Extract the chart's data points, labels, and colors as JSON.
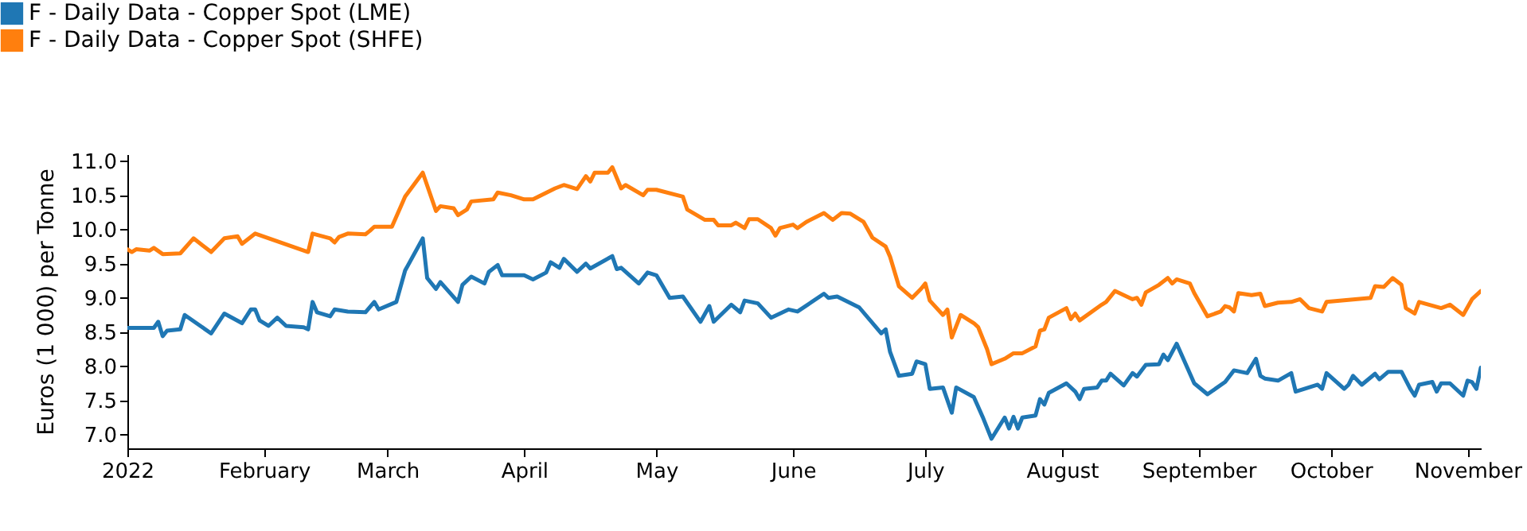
{
  "chart_data": {
    "type": "line",
    "ylabel": "Euros (1 000) per Tonne",
    "legend": "top left",
    "grid": false,
    "line_style": "solid",
    "marker": "none",
    "xlim": [
      "2022-01-01",
      "2022-11-04"
    ],
    "xticks": [
      {
        "value": "2022-01-01",
        "label": "2022"
      },
      {
        "value": "2022-02-01",
        "label": "February"
      },
      {
        "value": "2022-03-01",
        "label": "March"
      },
      {
        "value": "2022-04-01",
        "label": "April"
      },
      {
        "value": "2022-05-01",
        "label": "May"
      },
      {
        "value": "2022-06-01",
        "label": "June"
      },
      {
        "value": "2022-07-01",
        "label": "July"
      },
      {
        "value": "2022-08-01",
        "label": "August"
      },
      {
        "value": "2022-09-01",
        "label": "September"
      },
      {
        "value": "2022-10-01",
        "label": "October"
      },
      {
        "value": "2022-11-01",
        "label": "November"
      }
    ],
    "ylim": [
      6.8,
      11.1
    ],
    "yticks": [
      {
        "value": 7,
        "label": "7.0"
      },
      {
        "value": 7.5,
        "label": "7.5"
      },
      {
        "value": 8,
        "label": "8.0"
      },
      {
        "value": 8.5,
        "label": "8.5"
      },
      {
        "value": 9,
        "label": "9.0"
      },
      {
        "value": 9.5,
        "label": "9.5"
      },
      {
        "value": 10,
        "label": "10.0"
      },
      {
        "value": 10.5,
        "label": "10.5"
      },
      {
        "value": 11,
        "label": "11.0"
      }
    ],
    "series": [
      {
        "name": "F - Daily Data - Copper Spot (LME)",
        "color": "#1f77b4",
        "x": [
          "2022-01-01",
          "2022-01-07",
          "2022-01-08",
          "2022-01-09",
          "2022-01-10",
          "2022-01-13",
          "2022-01-14",
          "2022-01-20",
          "2022-01-23",
          "2022-01-27",
          "2022-01-29",
          "2022-01-30",
          "2022-01-31",
          "2022-02-02",
          "2022-02-04",
          "2022-02-06",
          "2022-02-10",
          "2022-02-11",
          "2022-02-12",
          "2022-02-13",
          "2022-02-16",
          "2022-02-17",
          "2022-02-20",
          "2022-02-24",
          "2022-02-26",
          "2022-02-27",
          "2022-03-03",
          "2022-03-05",
          "2022-03-09",
          "2022-03-10",
          "2022-03-12",
          "2022-03-13",
          "2022-03-17",
          "2022-03-18",
          "2022-03-20",
          "2022-03-23",
          "2022-03-24",
          "2022-03-26",
          "2022-03-27",
          "2022-04-01",
          "2022-04-03",
          "2022-04-06",
          "2022-04-07",
          "2022-04-09",
          "2022-04-10",
          "2022-04-13",
          "2022-04-15",
          "2022-04-16",
          "2022-04-21",
          "2022-04-22",
          "2022-04-23",
          "2022-04-27",
          "2022-04-29",
          "2022-05-01",
          "2022-05-04",
          "2022-05-07",
          "2022-05-11",
          "2022-05-13",
          "2022-05-14",
          "2022-05-18",
          "2022-05-20",
          "2022-05-21",
          "2022-05-24",
          "2022-05-27",
          "2022-05-31",
          "2022-06-02",
          "2022-06-08",
          "2022-06-09",
          "2022-06-11",
          "2022-06-16",
          "2022-06-21",
          "2022-06-22",
          "2022-06-23",
          "2022-06-25",
          "2022-06-28",
          "2022-06-29",
          "2022-07-01",
          "2022-07-02",
          "2022-07-05",
          "2022-07-07",
          "2022-07-08",
          "2022-07-12",
          "2022-07-14",
          "2022-07-16",
          "2022-07-19",
          "2022-07-20",
          "2022-07-21",
          "2022-07-22",
          "2022-07-23",
          "2022-07-26",
          "2022-07-27",
          "2022-07-28",
          "2022-07-29",
          "2022-08-02",
          "2022-08-04",
          "2022-08-05",
          "2022-08-06",
          "2022-08-09",
          "2022-08-10",
          "2022-08-11",
          "2022-08-12",
          "2022-08-15",
          "2022-08-17",
          "2022-08-18",
          "2022-08-20",
          "2022-08-23",
          "2022-08-24",
          "2022-08-25",
          "2022-08-27",
          "2022-08-31",
          "2022-09-03",
          "2022-09-07",
          "2022-09-09",
          "2022-09-12",
          "2022-09-14",
          "2022-09-15",
          "2022-09-16",
          "2022-09-19",
          "2022-09-22",
          "2022-09-23",
          "2022-09-28",
          "2022-09-29",
          "2022-09-30",
          "2022-10-04",
          "2022-10-05",
          "2022-10-06",
          "2022-10-08",
          "2022-10-11",
          "2022-10-12",
          "2022-10-14",
          "2022-10-17",
          "2022-10-19",
          "2022-10-20",
          "2022-10-21",
          "2022-10-24",
          "2022-10-25",
          "2022-10-26",
          "2022-10-28",
          "2022-10-31",
          "2022-11-01",
          "2022-11-02",
          "2022-11-03",
          "2022-11-04"
        ],
        "values": [
          8.56,
          8.56,
          8.65,
          8.44,
          8.52,
          8.54,
          8.75,
          8.48,
          8.77,
          8.63,
          8.83,
          8.83,
          8.67,
          8.59,
          8.71,
          8.59,
          8.57,
          8.54,
          8.94,
          8.79,
          8.73,
          8.83,
          8.8,
          8.79,
          8.94,
          8.83,
          8.94,
          9.4,
          9.87,
          9.29,
          9.13,
          9.23,
          8.94,
          9.19,
          9.31,
          9.21,
          9.38,
          9.48,
          9.33,
          9.33,
          9.27,
          9.37,
          9.52,
          9.44,
          9.57,
          9.38,
          9.5,
          9.43,
          9.61,
          9.42,
          9.44,
          9.21,
          9.37,
          9.33,
          9.0,
          9.02,
          8.65,
          8.88,
          8.65,
          8.9,
          8.79,
          8.96,
          8.92,
          8.71,
          8.83,
          8.8,
          9.06,
          9.0,
          9.02,
          8.86,
          8.48,
          8.54,
          8.21,
          7.86,
          7.89,
          8.07,
          8.03,
          7.67,
          7.69,
          7.32,
          7.69,
          7.55,
          7.26,
          6.94,
          7.25,
          7.09,
          7.26,
          7.09,
          7.25,
          7.28,
          7.52,
          7.44,
          7.61,
          7.75,
          7.63,
          7.52,
          7.67,
          7.69,
          7.79,
          7.79,
          7.89,
          7.72,
          7.9,
          7.85,
          8.02,
          8.03,
          8.17,
          8.09,
          8.33,
          7.75,
          7.59,
          7.77,
          7.94,
          7.9,
          8.11,
          7.86,
          7.82,
          7.79,
          7.9,
          7.63,
          7.73,
          7.67,
          7.9,
          7.67,
          7.73,
          7.86,
          7.73,
          7.89,
          7.81,
          7.92,
          7.92,
          7.67,
          7.57,
          7.73,
          7.77,
          7.63,
          7.75,
          7.75,
          7.57,
          7.79,
          7.77,
          7.67,
          7.98
        ]
      },
      {
        "name": "F - Daily Data - Copper Spot (SHFE)",
        "color": "#ff7f0e",
        "x": [
          "2022-01-01",
          "2022-01-02",
          "2022-01-03",
          "2022-01-06",
          "2022-01-07",
          "2022-01-09",
          "2022-01-13",
          "2022-01-16",
          "2022-01-18",
          "2022-01-20",
          "2022-01-23",
          "2022-01-26",
          "2022-01-27",
          "2022-01-30",
          "2022-02-11",
          "2022-02-12",
          "2022-02-16",
          "2022-02-17",
          "2022-02-18",
          "2022-02-20",
          "2022-02-24",
          "2022-02-25",
          "2022-02-26",
          "2022-03-02",
          "2022-03-05",
          "2022-03-09",
          "2022-03-12",
          "2022-03-13",
          "2022-03-16",
          "2022-03-17",
          "2022-03-19",
          "2022-03-20",
          "2022-03-25",
          "2022-03-26",
          "2022-03-29",
          "2022-04-01",
          "2022-04-03",
          "2022-04-08",
          "2022-04-10",
          "2022-04-13",
          "2022-04-15",
          "2022-04-16",
          "2022-04-17",
          "2022-04-20",
          "2022-04-21",
          "2022-04-23",
          "2022-04-24",
          "2022-04-28",
          "2022-04-29",
          "2022-05-01",
          "2022-05-07",
          "2022-05-08",
          "2022-05-12",
          "2022-05-14",
          "2022-05-15",
          "2022-05-18",
          "2022-05-19",
          "2022-05-21",
          "2022-05-22",
          "2022-05-24",
          "2022-05-27",
          "2022-05-28",
          "2022-05-29",
          "2022-06-01",
          "2022-06-02",
          "2022-06-04",
          "2022-06-08",
          "2022-06-10",
          "2022-06-12",
          "2022-06-14",
          "2022-06-17",
          "2022-06-19",
          "2022-06-22",
          "2022-06-23",
          "2022-06-25",
          "2022-06-28",
          "2022-06-30",
          "2022-07-01",
          "2022-07-02",
          "2022-07-05",
          "2022-07-06",
          "2022-07-07",
          "2022-07-09",
          "2022-07-12",
          "2022-07-13",
          "2022-07-15",
          "2022-07-16",
          "2022-07-19",
          "2022-07-21",
          "2022-07-23",
          "2022-07-26",
          "2022-07-27",
          "2022-07-28",
          "2022-07-29",
          "2022-08-02",
          "2022-08-03",
          "2022-08-04",
          "2022-08-05",
          "2022-08-10",
          "2022-08-11",
          "2022-08-13",
          "2022-08-17",
          "2022-08-18",
          "2022-08-19",
          "2022-08-20",
          "2022-08-23",
          "2022-08-25",
          "2022-08-26",
          "2022-08-27",
          "2022-08-30",
          "2022-08-31",
          "2022-09-03",
          "2022-09-06",
          "2022-09-07",
          "2022-09-08",
          "2022-09-09",
          "2022-09-10",
          "2022-09-13",
          "2022-09-15",
          "2022-09-16",
          "2022-09-19",
          "2022-09-22",
          "2022-09-24",
          "2022-09-26",
          "2022-09-29",
          "2022-09-30",
          "2022-10-10",
          "2022-10-11",
          "2022-10-13",
          "2022-10-15",
          "2022-10-17",
          "2022-10-18",
          "2022-10-20",
          "2022-10-21",
          "2022-10-26",
          "2022-10-28",
          "2022-10-31",
          "2022-11-02",
          "2022-11-04"
        ],
        "values": [
          9.71,
          9.67,
          9.71,
          9.69,
          9.73,
          9.64,
          9.65,
          9.87,
          9.77,
          9.67,
          9.87,
          9.9,
          9.79,
          9.94,
          9.67,
          9.94,
          9.87,
          9.81,
          9.89,
          9.94,
          9.93,
          9.98,
          10.04,
          10.04,
          10.48,
          10.83,
          10.27,
          10.34,
          10.31,
          10.21,
          10.29,
          10.41,
          10.44,
          10.54,
          10.5,
          10.44,
          10.44,
          10.6,
          10.65,
          10.59,
          10.78,
          10.7,
          10.83,
          10.83,
          10.91,
          10.6,
          10.65,
          10.5,
          10.58,
          10.58,
          10.48,
          10.29,
          10.14,
          10.14,
          10.06,
          10.06,
          10.1,
          10.02,
          10.15,
          10.15,
          10.02,
          9.91,
          10.02,
          10.07,
          10.02,
          10.11,
          10.24,
          10.14,
          10.24,
          10.23,
          10.11,
          9.88,
          9.75,
          9.6,
          9.17,
          9.0,
          9.13,
          9.21,
          8.96,
          8.75,
          8.83,
          8.42,
          8.75,
          8.63,
          8.57,
          8.25,
          8.03,
          8.11,
          8.19,
          8.19,
          8.29,
          8.52,
          8.54,
          8.71,
          8.85,
          8.69,
          8.77,
          8.67,
          8.9,
          8.94,
          9.1,
          8.98,
          9.0,
          8.9,
          9.08,
          9.19,
          9.29,
          9.21,
          9.27,
          9.21,
          9.07,
          8.73,
          8.8,
          8.88,
          8.86,
          8.8,
          9.07,
          9.04,
          9.06,
          8.88,
          8.93,
          8.94,
          8.98,
          8.85,
          8.8,
          8.94,
          9.0,
          9.17,
          9.16,
          9.29,
          9.19,
          8.85,
          8.77,
          8.94,
          8.85,
          8.9,
          8.75,
          8.98,
          9.1
        ]
      }
    ]
  }
}
